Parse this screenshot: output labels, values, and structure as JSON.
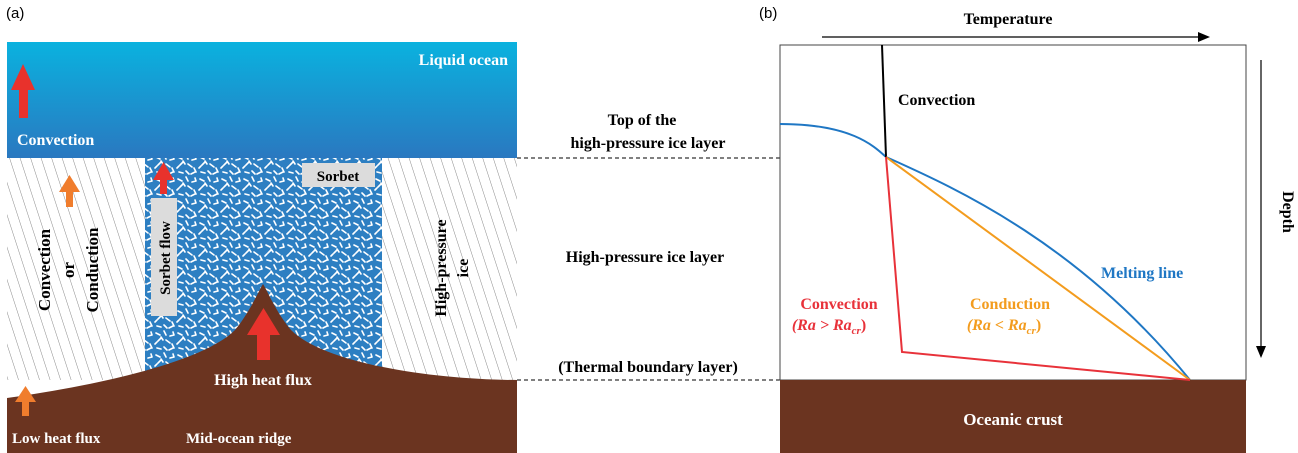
{
  "panel_a": {
    "label": "(a)",
    "liquid_ocean": "Liquid ocean",
    "convection": "Convection",
    "convection_or_conduction": [
      "Convection",
      "or",
      "Conduction"
    ],
    "sorbet_flow": "Sorbet flow",
    "sorbet": "Sorbet",
    "high_pressure_ice": [
      "High-pressure",
      "ice"
    ],
    "high_heat_flux": "High heat flux",
    "low_heat_flux": "Low heat flux",
    "mid_ocean_ridge": "Mid-ocean ridge"
  },
  "middle_labels": {
    "top_hp_ice": [
      "Top of the",
      "high-pressure ice layer"
    ],
    "hp_ice_layer": "High-pressure ice layer",
    "thermal_boundary": "(Thermal boundary layer)"
  },
  "panel_b": {
    "label": "(b)",
    "temperature_axis": "Temperature",
    "depth_axis": "Depth",
    "convection_top": "Convection",
    "melting_line": "Melting line",
    "convection_red": [
      "Convection",
      "(Ra > Ra",
      "cr",
      ")"
    ],
    "conduction_orange": [
      "Conduction",
      "(Ra < Ra",
      "cr",
      ")"
    ],
    "oceanic_crust": "Oceanic crust"
  },
  "colors": {
    "ocean_top": "#0aa6d9",
    "ocean_bottom": "#2a7ec4",
    "crust": "#6b3420",
    "red_arrow": "#e8322c",
    "orange_arrow": "#f07d2d",
    "melting_blue": "#1f77c4",
    "conduction_orange": "#f39c1e",
    "convection_red": "#e8323a",
    "sorbet_blue": "#2d7fc2"
  }
}
